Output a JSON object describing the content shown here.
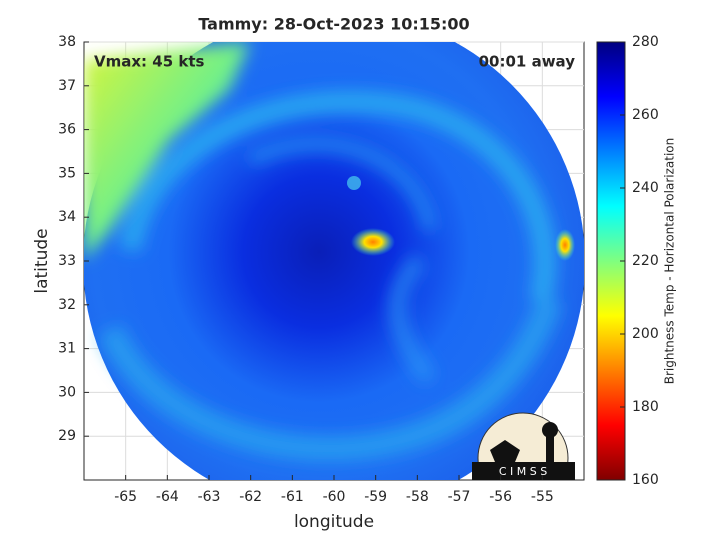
{
  "chart_data": {
    "type": "image",
    "title": "Tammy: 28-Oct-2023 10:15:00",
    "annotations": [
      "Vmax: 45 kts",
      "00:01 away"
    ],
    "x_label": "longitude",
    "y_label": "latitude",
    "xlim": [
      -66,
      -54
    ],
    "xticks": [
      -65,
      -64,
      -63,
      -62,
      -61,
      -60,
      -59,
      -58,
      -57,
      -56,
      -55
    ],
    "ylim": [
      28,
      38
    ],
    "yticks": [
      29,
      30,
      31,
      32,
      33,
      34,
      35,
      36,
      37,
      38
    ],
    "grid": true,
    "colorbar_label": "Brightness Temp - Horizontal Polarization",
    "clim": [
      160,
      280
    ],
    "cticks": [
      160,
      180,
      200,
      220,
      240,
      260,
      280
    ],
    "colormap": "jet",
    "logo": "C I M S S"
  }
}
